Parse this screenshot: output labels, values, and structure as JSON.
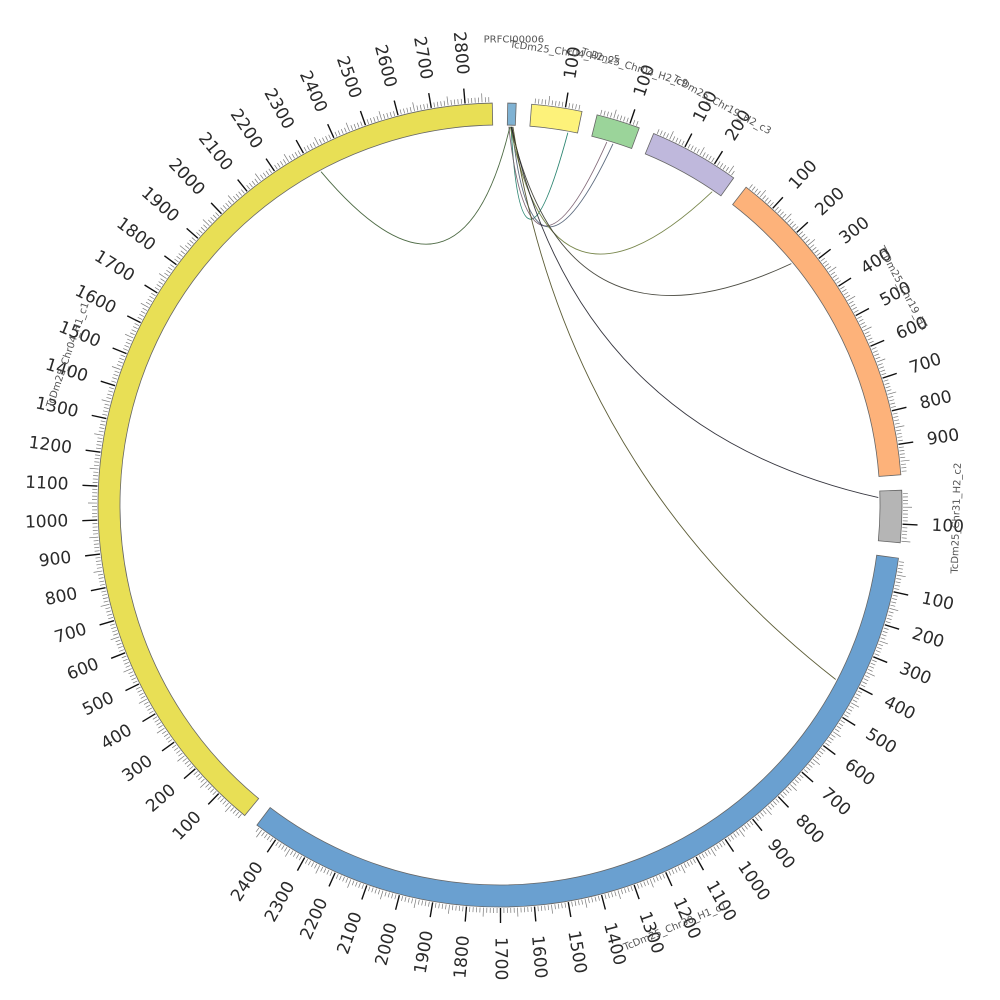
{
  "diagram": {
    "type": "circos",
    "start_angle_deg": 0,
    "gap_deg": 2.2,
    "segments": [
      {
        "name": "PRFCI00006",
        "length": 25,
        "color": "#7fb2d3",
        "tick_step": null,
        "label_style": "horizontal"
      },
      {
        "name": "TcDm25_Chr04_H2_c5",
        "length": 150,
        "color": "#fdf27a",
        "tick_step": 100,
        "label_style": "tangent"
      },
      {
        "name": "TcDm25_Chr04_H2_c9",
        "length": 130,
        "color": "#9bd49a",
        "tick_step": 100,
        "label_style": "tangent"
      },
      {
        "name": "TcDm25_Chr19_H2_c3",
        "length": 270,
        "color": "#bfb8dc",
        "tick_step": 100,
        "label_style": "tangent"
      },
      {
        "name": "TcDm25_Chr19_H1",
        "length": 990,
        "color": "#fdb27a",
        "tick_step": 100,
        "label_style": "tangent"
      },
      {
        "name": "TcDm25_Chr31_H2_c2",
        "length": 155,
        "color": "#b5b5b5",
        "tick_step": 100,
        "label_style": "tangent"
      },
      {
        "name": "TcDm25_Chr30_H1_c1",
        "length": 2470,
        "color": "#6aa0d0",
        "tick_step": 100,
        "label_style": "tangent"
      },
      {
        "name": "TcDm25_Chr04_H1_c1",
        "length": 2880,
        "color": "#e8df55",
        "tick_step": 100,
        "label_style": "tangent"
      }
    ],
    "links": [
      {
        "from": [
          "PRFCI00006",
          12
        ],
        "to": [
          "TcDm25_Chr04_H2_c5",
          120
        ],
        "color": "#22806a",
        "width": 10
      },
      {
        "from": [
          "PRFCI00006",
          5
        ],
        "to": [
          "TcDm25_Chr04_H2_c9",
          50
        ],
        "color": "#7a6070",
        "width": 10
      },
      {
        "from": [
          "PRFCI00006",
          15
        ],
        "to": [
          "TcDm25_Chr04_H2_c9",
          70
        ],
        "color": "#4a5a70",
        "width": 3
      },
      {
        "from": [
          "PRFCI00006",
          8
        ],
        "to": [
          "TcDm25_Chr04_H1_c1",
          2320
        ],
        "color": "#3a5a30",
        "width": 1
      },
      {
        "from": [
          "PRFCI00006",
          10
        ],
        "to": [
          "TcDm25_Chr19_H2_c3",
          240
        ],
        "color": "#6a7a3a",
        "width": 1
      },
      {
        "from": [
          "PRFCI00006",
          12
        ],
        "to": [
          "TcDm25_Chr19_H1",
          260
        ],
        "color": "#3a3a30",
        "width": 1
      },
      {
        "from": [
          "PRFCI00006",
          14
        ],
        "to": [
          "TcDm25_Chr31_H2_c2",
          20
        ],
        "color": "#20202a",
        "width": 1
      },
      {
        "from": [
          "PRFCI00006",
          18
        ],
        "to": [
          "TcDm25_Chr30_H1_c1",
          410
        ],
        "color": "#4a4a20",
        "width": 1
      }
    ]
  }
}
